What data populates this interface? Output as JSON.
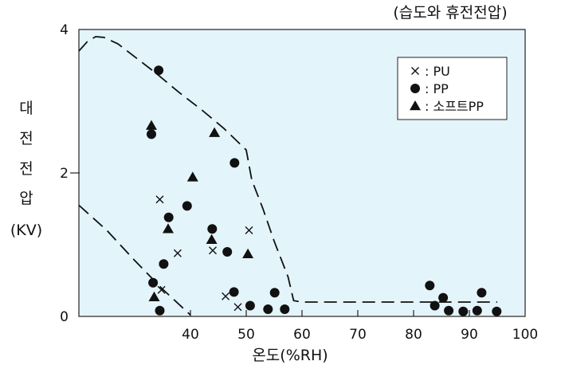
{
  "chart_data": {
    "type": "scatter",
    "title": "(습도와 휴전전압)",
    "xlabel": "온도(%RH)",
    "ylabel_lines": [
      "대",
      "전",
      "전",
      "압",
      "(KV)"
    ],
    "xlim": [
      20,
      100
    ],
    "ylim": [
      0,
      4
    ],
    "x_ticks": [
      40,
      50,
      60,
      70,
      80,
      90,
      100
    ],
    "y_ticks": [
      0,
      2,
      4
    ],
    "grid": false,
    "legend_position": "top-right",
    "plot_background": "#e4f4fb",
    "series": [
      {
        "name": ": PU",
        "marker": "x",
        "points": [
          [
            34.5,
            1.63
          ],
          [
            34.8,
            0.37
          ],
          [
            37.7,
            0.88
          ],
          [
            44,
            0.92
          ],
          [
            46.3,
            0.28
          ],
          [
            48.5,
            0.13
          ],
          [
            50.5,
            1.2
          ]
        ]
      },
      {
        "name": ": PP",
        "marker": "circle",
        "points": [
          [
            34.3,
            3.43
          ],
          [
            33,
            2.54
          ],
          [
            33.3,
            0.47
          ],
          [
            35.2,
            0.73
          ],
          [
            34.5,
            0.08
          ],
          [
            36.1,
            1.38
          ],
          [
            39.4,
            1.54
          ],
          [
            43.9,
            1.22
          ],
          [
            46.6,
            0.9
          ],
          [
            47.9,
            2.14
          ],
          [
            47.8,
            0.34
          ],
          [
            50.7,
            0.15
          ],
          [
            53.9,
            0.1
          ],
          [
            55.1,
            0.33
          ],
          [
            56.9,
            0.1
          ],
          [
            82.9,
            0.43
          ],
          [
            83.8,
            0.15
          ],
          [
            85.3,
            0.26
          ],
          [
            86.3,
            0.08
          ],
          [
            88.9,
            0.07
          ],
          [
            91.4,
            0.08
          ],
          [
            92.2,
            0.33
          ],
          [
            94.9,
            0.07
          ]
        ]
      },
      {
        "name": ": 소프트PP",
        "marker": "triangle",
        "points": [
          [
            33,
            2.66
          ],
          [
            36,
            1.22
          ],
          [
            40.4,
            1.94
          ],
          [
            44.3,
            2.56
          ],
          [
            43.8,
            1.07
          ],
          [
            50.3,
            0.87
          ],
          [
            33.5,
            0.27
          ]
        ]
      }
    ],
    "boundary_curves": [
      {
        "style": "dashed",
        "points": [
          [
            20,
            3.7
          ],
          [
            21.5,
            3.83
          ],
          [
            23,
            3.9
          ],
          [
            24.5,
            3.89
          ],
          [
            27,
            3.8
          ],
          [
            30,
            3.62
          ],
          [
            34,
            3.38
          ],
          [
            38,
            3.12
          ],
          [
            42,
            2.88
          ],
          [
            46,
            2.62
          ],
          [
            50,
            2.32
          ],
          [
            51,
            1.9
          ],
          [
            53,
            1.5
          ],
          [
            55,
            1.05
          ],
          [
            57.5,
            0.55
          ],
          [
            58.5,
            0.22
          ],
          [
            60,
            0.2
          ],
          [
            95,
            0.2
          ]
        ]
      },
      {
        "style": "dashed",
        "points": [
          [
            20,
            1.55
          ],
          [
            25,
            1.2
          ],
          [
            30,
            0.78
          ],
          [
            35,
            0.38
          ],
          [
            40,
            0.02
          ]
        ]
      }
    ]
  }
}
